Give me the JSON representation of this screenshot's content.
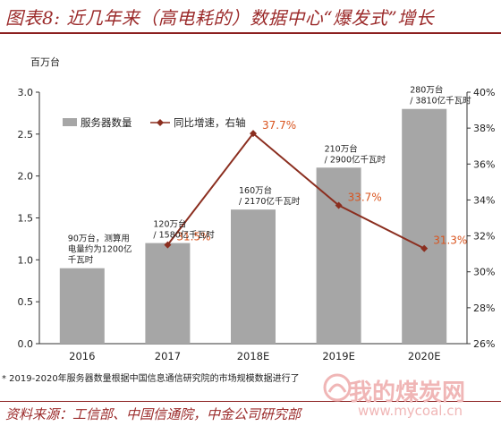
{
  "title": "图表8: 近几年来（高电耗的）数据中心“爆发式”增长",
  "footnote": "* 2019-2020年服务器数量根据中国信息通信研究院的市场规模数据进行了",
  "source": "资料来源：工信部、中国信通院，中金公司研究部",
  "watermark": {
    "text": "我的煤炭网",
    "url": "www.mycoal.cn"
  },
  "chart_data": {
    "type": "bar",
    "ylabel": "百万台",
    "categories": [
      "2016",
      "2017",
      "2018E",
      "2019E",
      "2020E"
    ],
    "series": [
      {
        "name": "服务器数量",
        "type": "bar",
        "axis": "left",
        "values": [
          0.9,
          1.2,
          1.6,
          2.1,
          2.8
        ]
      },
      {
        "name": "同比增速，右轴",
        "type": "line",
        "axis": "right",
        "values": [
          null,
          31.5,
          37.7,
          33.7,
          31.3
        ]
      }
    ],
    "ylim": [
      0,
      3.0
    ],
    "y_ticks": [
      "0.0",
      "0.5",
      "1.0",
      "1.5",
      "2.0",
      "2.5",
      "3.0"
    ],
    "y2lim": [
      26,
      40
    ],
    "y2_ticks": [
      "26%",
      "28%",
      "30%",
      "32%",
      "34%",
      "36%",
      "38%",
      "40%"
    ],
    "line_labels": [
      "",
      "31.5%",
      "37.7%",
      "33.7%",
      "31.3%"
    ],
    "bar_annotations": [
      [
        "90万台，测算用",
        "电量约为1200亿",
        "千瓦时"
      ],
      [
        "120万台",
        "/ 1580亿千瓦时"
      ],
      [
        "160万台",
        "/ 2170亿千瓦时"
      ],
      [
        "210万台",
        "/ 2900亿千瓦时"
      ],
      [
        "280万台",
        "/ 3810亿千瓦时"
      ]
    ],
    "grid": false,
    "legend_position": "top-left",
    "colors": {
      "bar": "#a6a6a6",
      "line": "#8b2e1f",
      "line_label": "#d9541e",
      "title": "#9b2a2a"
    }
  }
}
